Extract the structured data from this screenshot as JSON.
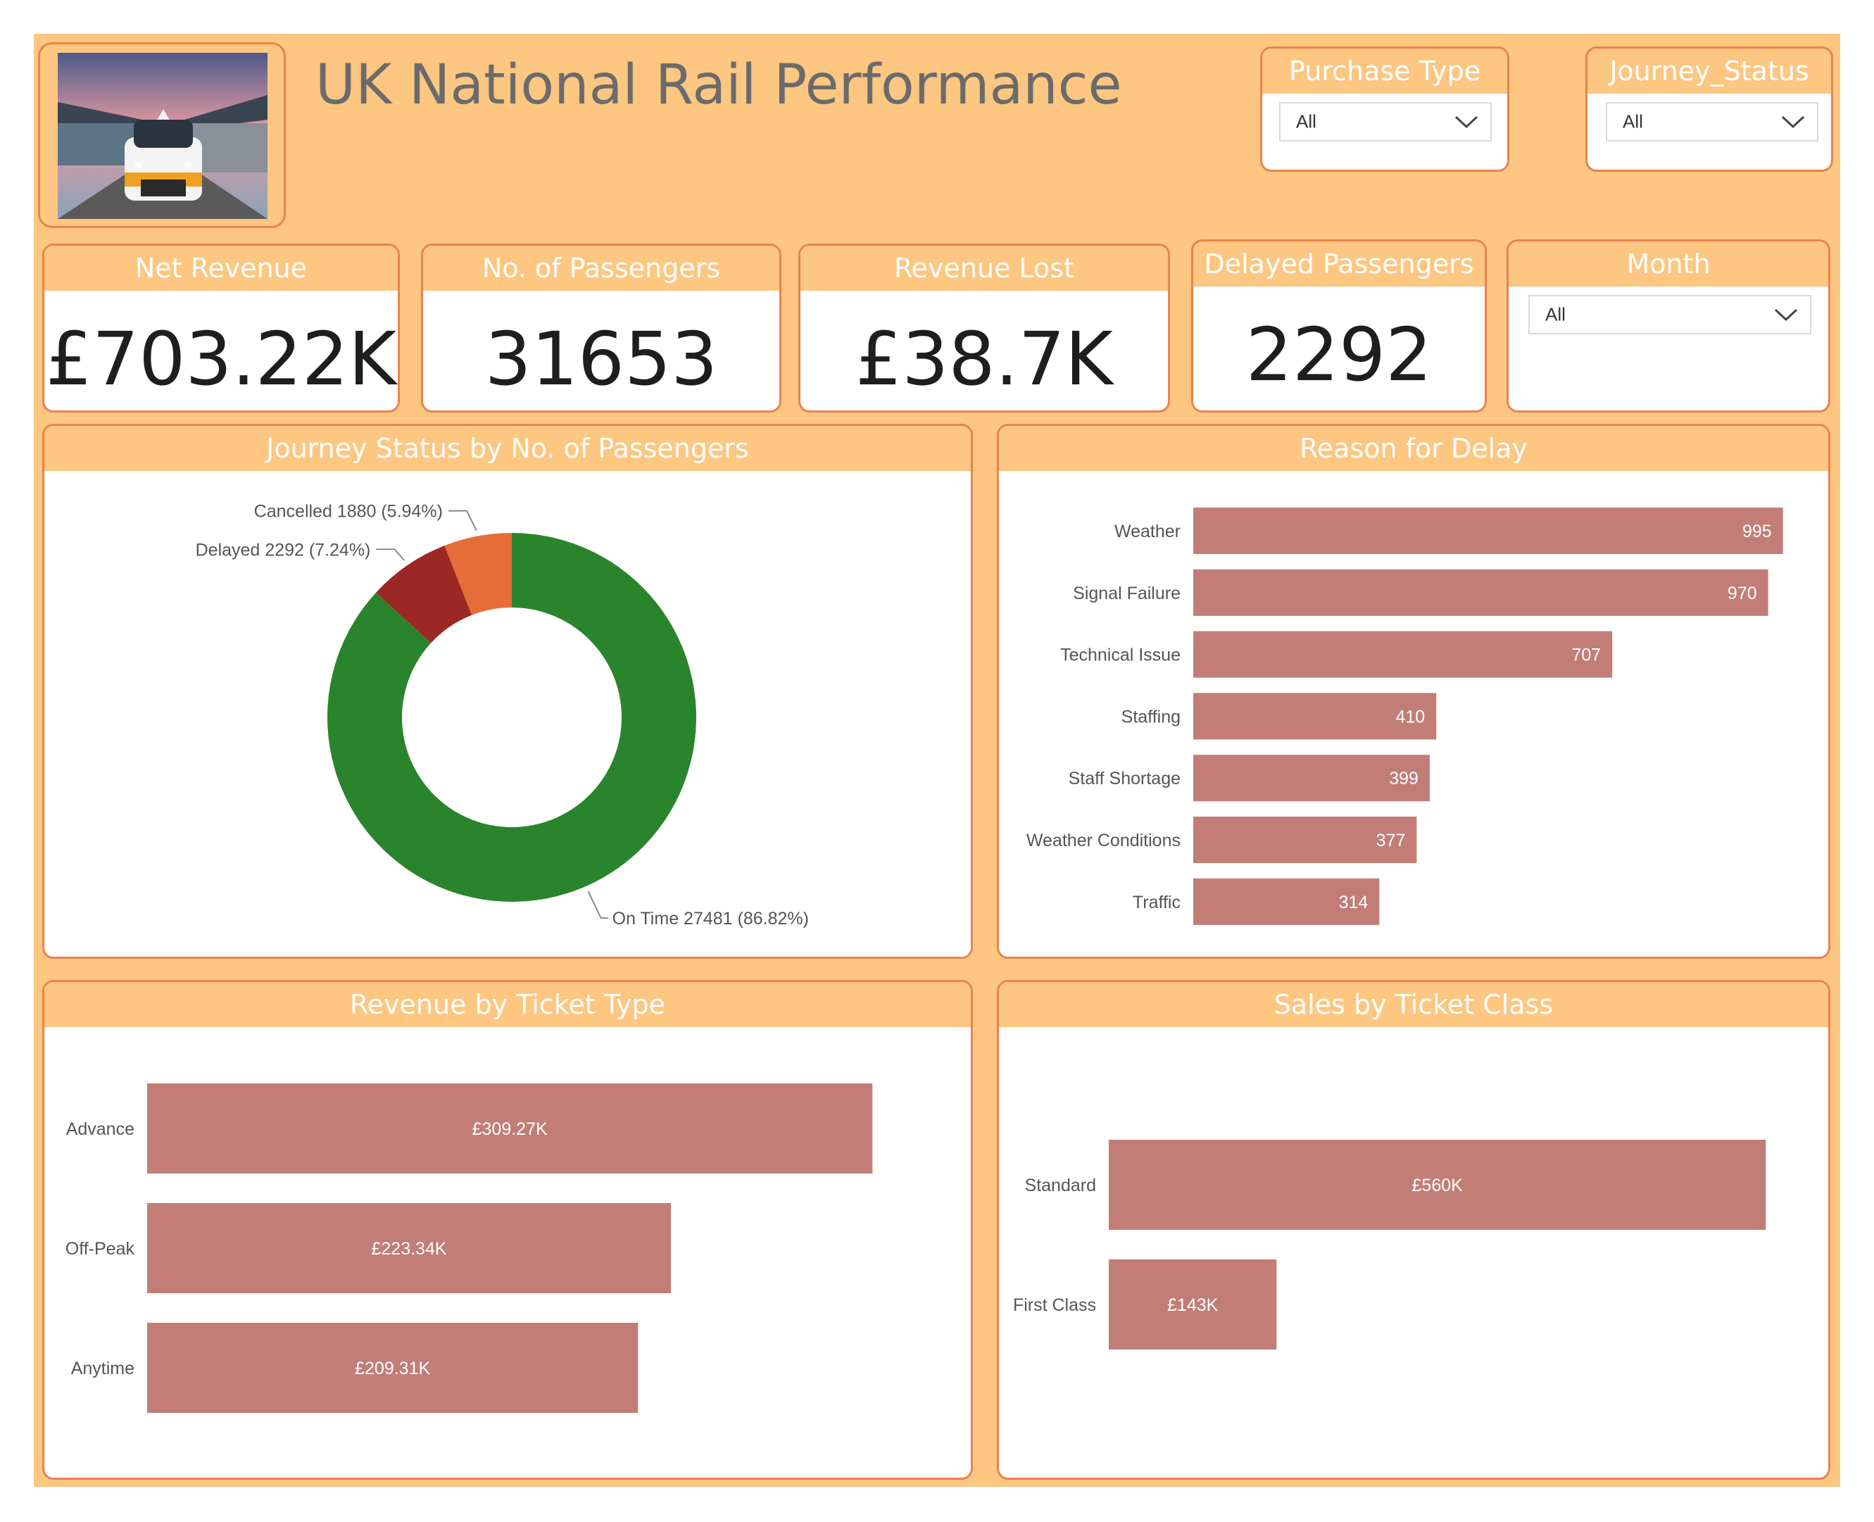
{
  "header": {
    "title": "UK National Rail Performance"
  },
  "filters": {
    "purchase_type": {
      "label": "Purchase Type",
      "value": "All"
    },
    "journey_status": {
      "label": "Journey_Status",
      "value": "All"
    },
    "month": {
      "label": "Month",
      "value": "All"
    }
  },
  "kpis": {
    "net_revenue": {
      "label": "Net Revenue",
      "value": "£703.22K"
    },
    "passengers": {
      "label": "No. of Passengers",
      "value": "31653"
    },
    "revenue_lost": {
      "label": "Revenue Lost",
      "value": "£38.7K"
    },
    "delayed_passengers": {
      "label": "Delayed Passengers",
      "value": "2292"
    }
  },
  "colors": {
    "background": "#fdc681",
    "border": "#e8834e",
    "bar": "#c27d77",
    "on_time": "#2a842c",
    "delayed": "#9b2824",
    "cancelled": "#e66d38"
  },
  "chart_data": [
    {
      "type": "pie",
      "title": "Journey Status by No. of Passengers",
      "slices": [
        {
          "label": "On Time",
          "value": 27481,
          "percent": "86.82%",
          "color": "#2a842c",
          "data_label": "On Time 27481 (86.82%)"
        },
        {
          "label": "Delayed",
          "value": 2292,
          "percent": "7.24%",
          "color": "#9b2824",
          "data_label": "Delayed 2292 (7.24%)"
        },
        {
          "label": "Cancelled",
          "value": 1880,
          "percent": "5.94%",
          "color": "#e66d38",
          "data_label": "Cancelled 1880 (5.94%)"
        }
      ]
    },
    {
      "type": "bar",
      "orientation": "horizontal",
      "title": "Reason for Delay",
      "categories": [
        "Weather",
        "Signal Failure",
        "Technical Issue",
        "Staffing",
        "Staff Shortage",
        "Weather Conditions",
        "Traffic"
      ],
      "values": [
        995,
        970,
        707,
        410,
        399,
        377,
        314
      ],
      "labels": [
        "995",
        "970",
        "707",
        "410",
        "399",
        "377",
        "314"
      ],
      "xlim": [
        0,
        1050
      ]
    },
    {
      "type": "bar",
      "orientation": "horizontal",
      "title": "Revenue by Ticket Type",
      "categories": [
        "Advance",
        "Off-Peak",
        "Anytime"
      ],
      "values": [
        309.27,
        223.34,
        209.31
      ],
      "labels": [
        "£309.27K",
        "£223.34K",
        "£209.31K"
      ],
      "xlim": [
        0,
        350
      ]
    },
    {
      "type": "bar",
      "orientation": "horizontal",
      "title": "Sales by Ticket Class",
      "categories": [
        "Standard",
        "First Class"
      ],
      "values": [
        560,
        143
      ],
      "labels": [
        "£560K",
        "£143K"
      ],
      "xlim": [
        0,
        600
      ]
    }
  ]
}
